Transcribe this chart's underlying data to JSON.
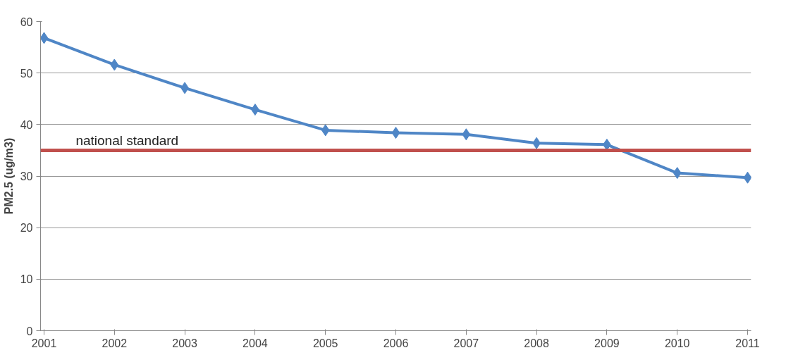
{
  "chart_data": {
    "type": "line",
    "ylabel": "PM2.5 (ug/m3)",
    "categories": [
      "2001",
      "2002",
      "2003",
      "2004",
      "2005",
      "2006",
      "2007",
      "2008",
      "2009",
      "2010",
      "2011"
    ],
    "series": [
      {
        "color": "#4f86c6",
        "values": [
          56.8,
          51.6,
          47.1,
          42.9,
          38.9,
          38.4,
          38.1,
          36.4,
          36.1,
          30.6,
          29.7
        ]
      }
    ],
    "ylim": [
      0,
      60
    ],
    "yticks": [
      0,
      10,
      20,
      30,
      40,
      50,
      60
    ],
    "grid": "y",
    "marker": "diamond",
    "line_style": "solid",
    "ref_lines": [
      {
        "axis": "y",
        "value": 35,
        "label": "national standard",
        "color": "#c0504d"
      }
    ]
  }
}
